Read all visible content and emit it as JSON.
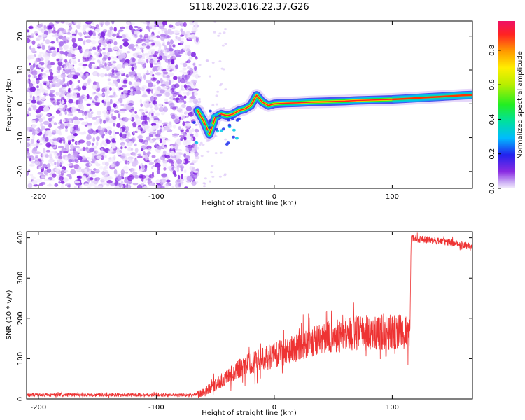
{
  "title": "S118.2023.016.22.37.G26",
  "chart_data": [
    {
      "type": "heatmap",
      "xlabel": "Height of straight line (km)",
      "ylabel": "Frequency (Hz)",
      "xlim": [
        -210,
        168
      ],
      "ylim": [
        -25,
        24.5
      ],
      "xticks": [
        -200,
        -100,
        0,
        100
      ],
      "yticks": [
        -20,
        -10,
        0,
        10,
        20
      ],
      "colorbar": {
        "label": "Normalized spectral amplitude",
        "range": [
          0,
          0.97
        ],
        "ticks": [
          "0.0",
          "0.2",
          "0.4",
          "0.6",
          "0.8"
        ]
      },
      "signal_ridge": {
        "x": [
          -65,
          -60,
          -55,
          -50,
          -45,
          -40,
          -35,
          -30,
          -25,
          -20,
          -15,
          -10,
          -5,
          0,
          10,
          20,
          30,
          40,
          50,
          60,
          70,
          80,
          90,
          100,
          110,
          120,
          130,
          140,
          150,
          160,
          168
        ],
        "freq": [
          -2,
          -5,
          -9,
          -4,
          -3,
          -3.5,
          -3,
          -2,
          -1.5,
          -0.5,
          2.5,
          0.5,
          -0.5,
          0,
          0.2,
          0.3,
          0.5,
          0.6,
          0.7,
          0.8,
          1,
          1.1,
          1.2,
          1.3,
          1.5,
          1.7,
          1.9,
          2.1,
          2.3,
          2.5,
          2.6
        ]
      }
    },
    {
      "type": "line",
      "xlabel": "Height of straight line (km)",
      "ylabel": "SNR (10 * v/v)",
      "xlim": [
        -210,
        168
      ],
      "ylim": [
        0,
        415
      ],
      "xticks": [
        -200,
        -100,
        0,
        100
      ],
      "yticks": [
        0,
        100,
        200,
        300,
        400
      ],
      "color": "#ee3333",
      "series": [
        {
          "x": [
            -210,
            -180,
            -150,
            -120,
            -90,
            -70,
            -60,
            -50,
            -40,
            -30,
            -20,
            -10,
            0,
            10,
            20,
            30,
            40,
            50,
            60,
            70,
            80,
            90,
            100,
            110,
            115,
            116,
            125,
            140,
            155,
            168
          ],
          "values": [
            10,
            10,
            10,
            10,
            10,
            10,
            15,
            35,
            55,
            75,
            88,
            98,
            108,
            118,
            130,
            140,
            150,
            155,
            160,
            163,
            165,
            165,
            166,
            166,
            166,
            398,
            396,
            392,
            385,
            378
          ]
        }
      ]
    }
  ]
}
